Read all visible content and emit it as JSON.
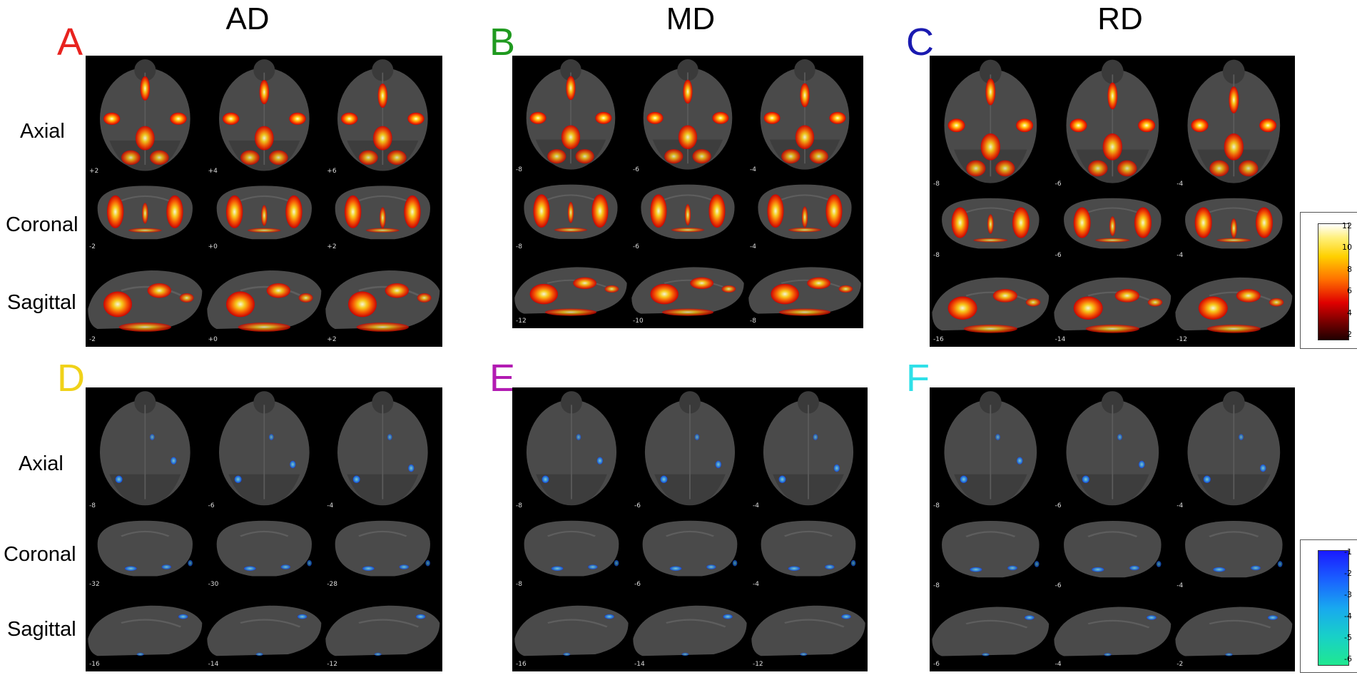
{
  "columns": [
    {
      "id": "AD",
      "header": "AD"
    },
    {
      "id": "MD",
      "header": "MD"
    },
    {
      "id": "RD",
      "header": "RD"
    }
  ],
  "panels": [
    {
      "letter": "A",
      "letter_color": "#e8231f",
      "tone": "hot",
      "labels": [
        "Axial",
        "Coronal",
        "Sagittal"
      ],
      "coords": {
        "axial": [
          "+2",
          "+4",
          "+6"
        ],
        "coronal": [
          "-2",
          "+0",
          "+2"
        ],
        "sagittal": [
          "-2",
          "+0",
          "+2"
        ]
      }
    },
    {
      "letter": "B",
      "letter_color": "#1f9a1f",
      "tone": "hot",
      "labels": [],
      "coords": {
        "axial": [
          "-8",
          "-6",
          "-4"
        ],
        "coronal": [
          "-8",
          "-6",
          "-4"
        ],
        "sagittal": [
          "-12",
          "-10",
          "-8"
        ]
      }
    },
    {
      "letter": "C",
      "letter_color": "#1a1ab0",
      "tone": "hot",
      "labels": [],
      "coords": {
        "axial": [
          "-8",
          "-6",
          "-4"
        ],
        "coronal": [
          "-8",
          "-6",
          "-4"
        ],
        "sagittal": [
          "-16",
          "-14",
          "-12"
        ]
      }
    },
    {
      "letter": "D",
      "letter_color": "#f0d21a",
      "tone": "cool",
      "labels": [
        "Axial",
        "Coronal",
        "Sagittal"
      ],
      "coords": {
        "axial": [
          "-8",
          "-6",
          "-4"
        ],
        "coronal": [
          "-32",
          "-30",
          "-28"
        ],
        "sagittal": [
          "-16",
          "-14",
          "-12"
        ]
      }
    },
    {
      "letter": "E",
      "letter_color": "#b21bb2",
      "tone": "cool",
      "labels": [],
      "coords": {
        "axial": [
          "-8",
          "-6",
          "-4"
        ],
        "coronal": [
          "-8",
          "-6",
          "-4"
        ],
        "sagittal": [
          "-16",
          "-14",
          "-12"
        ]
      }
    },
    {
      "letter": "F",
      "letter_color": "#2fe0e8",
      "tone": "cool",
      "labels": [],
      "coords": {
        "axial": [
          "-8",
          "-6",
          "-4"
        ],
        "coronal": [
          "-8",
          "-6",
          "-4"
        ],
        "sagittal": [
          "-6",
          "-4",
          "-2"
        ]
      }
    }
  ],
  "colorbars": {
    "hot": {
      "ticks": [
        "12",
        "10",
        "8",
        "6",
        "4",
        "2"
      ],
      "colors": [
        "#ffffff",
        "#ffe800",
        "#ff6a00",
        "#d00000",
        "#2a0000"
      ]
    },
    "cool": {
      "ticks": [
        "-1",
        "-2",
        "-3",
        "-4",
        "-5",
        "-6"
      ],
      "colors": [
        "#1f1fff",
        "#1880ff",
        "#18c0e0",
        "#20e090"
      ]
    }
  },
  "colors": {
    "background": "#ffffff",
    "panel": "#000000",
    "brain": "#4a4a4a"
  }
}
